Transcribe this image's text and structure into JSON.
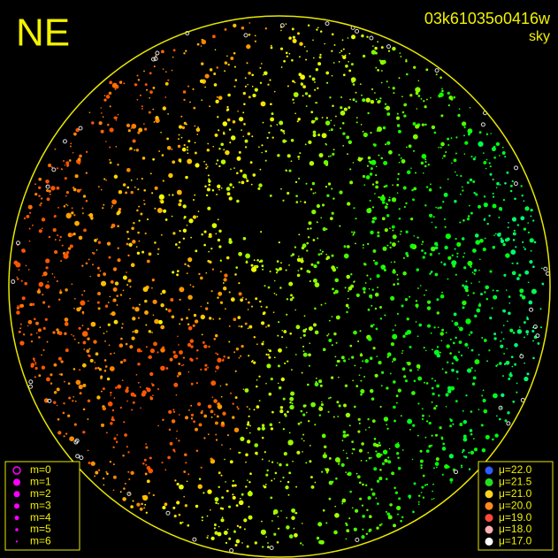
{
  "header": {
    "corner": "NE",
    "id": "03k61035o0416w",
    "mode": "sky"
  },
  "legends": {
    "magnitude": {
      "color": "#ff00ff",
      "items": [
        "m=0",
        "m=1",
        "m=2",
        "m=3",
        "m=4",
        "m=5",
        "m=6"
      ]
    },
    "surface_brightness": {
      "items": [
        {
          "label": "μ=22.0",
          "color": "#2f5cff"
        },
        {
          "label": "μ=21.5",
          "color": "#22dd22"
        },
        {
          "label": "μ=21.0",
          "color": "#ffd21e"
        },
        {
          "label": "μ=20.0",
          "color": "#ff8a1e"
        },
        {
          "label": "μ=19.0",
          "color": "#ff4a3a"
        },
        {
          "label": "μ=18.0",
          "color": "#ffb0b0"
        },
        {
          "label": "μ=17.0",
          "color": "#ffffff"
        }
      ]
    }
  }
}
